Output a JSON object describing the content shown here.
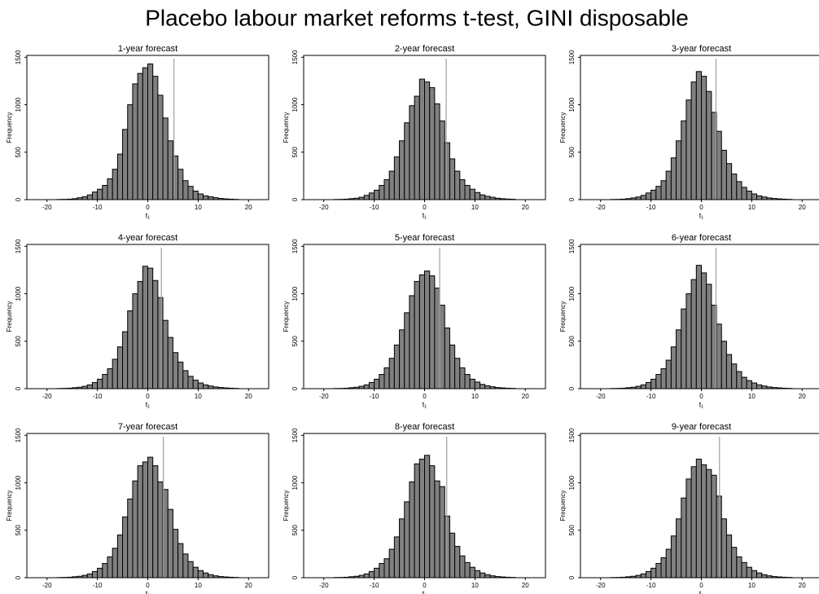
{
  "title": "Placebo labour market reforms t-test, GINI disposable",
  "chart_data": [
    {
      "type": "histogram",
      "title": "1-year forecast",
      "x_label": "t₁",
      "y_label": "Frequency",
      "color": "#808080",
      "vline": 5.2,
      "vline_color": "#a0a0a0",
      "bins": [
        -18,
        -17,
        -16,
        -15,
        -14,
        -13,
        -12,
        -11,
        -10,
        -9,
        -8,
        -7,
        -6,
        -5,
        -4,
        -3,
        -2,
        -1,
        0,
        1,
        2,
        3,
        4,
        5,
        6,
        7,
        8,
        9,
        10,
        11,
        12,
        13,
        14,
        15,
        16,
        17,
        18
      ],
      "values": [
        2,
        3,
        5,
        10,
        20,
        30,
        50,
        80,
        110,
        150,
        220,
        320,
        480,
        740,
        1000,
        1220,
        1330,
        1390,
        1430,
        1300,
        1100,
        860,
        620,
        460,
        320,
        200,
        140,
        90,
        60,
        40,
        30,
        20,
        12,
        8,
        5,
        3
      ],
      "xlim": [
        -24,
        24
      ],
      "xticks": [
        -20,
        -10,
        0,
        10,
        20
      ],
      "ylim": [
        0,
        1520
      ],
      "yticks": [
        0,
        500,
        1000,
        1500
      ]
    },
    {
      "type": "histogram",
      "title": "2-year forecast",
      "x_label": "t₁",
      "y_label": "Frequency",
      "color": "#808080",
      "vline": 4.3,
      "vline_color": "#a0a0a0",
      "bins": [
        -18,
        -17,
        -16,
        -15,
        -14,
        -13,
        -12,
        -11,
        -10,
        -9,
        -8,
        -7,
        -6,
        -5,
        -4,
        -3,
        -2,
        -1,
        0,
        1,
        2,
        3,
        4,
        5,
        6,
        7,
        8,
        9,
        10,
        11,
        12,
        13,
        14,
        15,
        16,
        17,
        18
      ],
      "values": [
        2,
        3,
        5,
        10,
        15,
        25,
        45,
        70,
        100,
        150,
        210,
        300,
        450,
        620,
        810,
        990,
        1090,
        1270,
        1240,
        1180,
        1010,
        830,
        600,
        430,
        300,
        210,
        150,
        110,
        75,
        50,
        35,
        25,
        15,
        10,
        6,
        4
      ],
      "xlim": [
        -24,
        24
      ],
      "xticks": [
        -20,
        -10,
        0,
        10,
        20
      ],
      "ylim": [
        0,
        1520
      ],
      "yticks": [
        0,
        500,
        1000,
        1500
      ]
    },
    {
      "type": "histogram",
      "title": "3-year forecast",
      "x_label": "t₁",
      "y_label": "Frequency",
      "color": "#808080",
      "vline": 2.9,
      "vline_color": "#a0a0a0",
      "bins": [
        -18,
        -17,
        -16,
        -15,
        -14,
        -13,
        -12,
        -11,
        -10,
        -9,
        -8,
        -7,
        -6,
        -5,
        -4,
        -3,
        -2,
        -1,
        0,
        1,
        2,
        3,
        4,
        5,
        6,
        7,
        8,
        9,
        10,
        11,
        12,
        13,
        14,
        15,
        16,
        17,
        18
      ],
      "values": [
        2,
        3,
        5,
        10,
        18,
        28,
        45,
        70,
        100,
        140,
        200,
        300,
        440,
        620,
        830,
        1050,
        1240,
        1350,
        1300,
        1140,
        920,
        720,
        520,
        380,
        270,
        190,
        130,
        90,
        60,
        40,
        28,
        18,
        12,
        8,
        5,
        3
      ],
      "xlim": [
        -24,
        24
      ],
      "xticks": [
        -20,
        -10,
        0,
        10,
        20
      ],
      "ylim": [
        0,
        1520
      ],
      "yticks": [
        0,
        500,
        1000,
        1500
      ]
    },
    {
      "type": "histogram",
      "title": "4-year forecast",
      "x_label": "t₁",
      "y_label": "Frequency",
      "color": "#808080",
      "vline": 2.7,
      "vline_color": "#a0a0a0",
      "bins": [
        -18,
        -17,
        -16,
        -15,
        -14,
        -13,
        -12,
        -11,
        -10,
        -9,
        -8,
        -7,
        -6,
        -5,
        -4,
        -3,
        -2,
        -1,
        0,
        1,
        2,
        3,
        4,
        5,
        6,
        7,
        8,
        9,
        10,
        11,
        12,
        13,
        14,
        15,
        16,
        17,
        18
      ],
      "values": [
        2,
        3,
        5,
        10,
        15,
        25,
        40,
        65,
        100,
        150,
        210,
        310,
        440,
        600,
        820,
        1000,
        1130,
        1290,
        1270,
        1140,
        960,
        720,
        540,
        380,
        280,
        190,
        130,
        90,
        60,
        40,
        28,
        18,
        12,
        8,
        5,
        3
      ],
      "xlim": [
        -24,
        24
      ],
      "xticks": [
        -20,
        -10,
        0,
        10,
        20
      ],
      "ylim": [
        0,
        1520
      ],
      "yticks": [
        0,
        500,
        1000,
        1500
      ]
    },
    {
      "type": "histogram",
      "title": "5-year forecast",
      "x_label": "t₁",
      "y_label": "Frequency",
      "color": "#808080",
      "vline": 3.0,
      "vline_color": "#a0a0a0",
      "bins": [
        -18,
        -17,
        -16,
        -15,
        -14,
        -13,
        -12,
        -11,
        -10,
        -9,
        -8,
        -7,
        -6,
        -5,
        -4,
        -3,
        -2,
        -1,
        0,
        1,
        2,
        3,
        4,
        5,
        6,
        7,
        8,
        9,
        10,
        11,
        12,
        13,
        14,
        15,
        16,
        17,
        18
      ],
      "values": [
        2,
        3,
        5,
        10,
        15,
        25,
        40,
        65,
        100,
        150,
        220,
        320,
        460,
        620,
        800,
        980,
        1130,
        1200,
        1240,
        1190,
        1060,
        880,
        640,
        460,
        320,
        220,
        150,
        100,
        70,
        45,
        30,
        20,
        12,
        8,
        5,
        3
      ],
      "xlim": [
        -24,
        24
      ],
      "xticks": [
        -20,
        -10,
        0,
        10,
        20
      ],
      "ylim": [
        0,
        1520
      ],
      "yticks": [
        0,
        500,
        1000,
        1500
      ]
    },
    {
      "type": "histogram",
      "title": "6-year forecast",
      "x_label": "t₁",
      "y_label": "Frequency",
      "color": "#808080",
      "vline": 2.9,
      "vline_color": "#a0a0a0",
      "bins": [
        -18,
        -17,
        -16,
        -15,
        -14,
        -13,
        -12,
        -11,
        -10,
        -9,
        -8,
        -7,
        -6,
        -5,
        -4,
        -3,
        -2,
        -1,
        0,
        1,
        2,
        3,
        4,
        5,
        6,
        7,
        8,
        9,
        10,
        11,
        12,
        13,
        14,
        15,
        16,
        17,
        18
      ],
      "values": [
        2,
        3,
        5,
        10,
        15,
        25,
        40,
        65,
        100,
        150,
        210,
        300,
        440,
        620,
        840,
        1000,
        1150,
        1300,
        1220,
        1100,
        880,
        680,
        500,
        360,
        260,
        180,
        120,
        85,
        60,
        40,
        28,
        18,
        12,
        8,
        5,
        3
      ],
      "xlim": [
        -24,
        24
      ],
      "xticks": [
        -20,
        -10,
        0,
        10,
        20
      ],
      "ylim": [
        0,
        1520
      ],
      "yticks": [
        0,
        500,
        1000,
        1500
      ]
    },
    {
      "type": "histogram",
      "title": "7-year forecast",
      "x_label": "t₁",
      "y_label": "Frequency",
      "color": "#808080",
      "vline": 3.1,
      "vline_color": "#a0a0a0",
      "bins": [
        -18,
        -17,
        -16,
        -15,
        -14,
        -13,
        -12,
        -11,
        -10,
        -9,
        -8,
        -7,
        -6,
        -5,
        -4,
        -3,
        -2,
        -1,
        0,
        1,
        2,
        3,
        4,
        5,
        6,
        7,
        8,
        9,
        10,
        11,
        12,
        13,
        14,
        15,
        16,
        17,
        18
      ],
      "values": [
        2,
        3,
        5,
        10,
        15,
        25,
        40,
        65,
        100,
        150,
        220,
        310,
        450,
        640,
        830,
        1020,
        1180,
        1220,
        1270,
        1180,
        1010,
        930,
        720,
        510,
        360,
        250,
        170,
        110,
        75,
        50,
        32,
        20,
        12,
        8,
        5,
        3
      ],
      "xlim": [
        -24,
        24
      ],
      "xticks": [
        -20,
        -10,
        0,
        10,
        20
      ],
      "ylim": [
        0,
        1520
      ],
      "yticks": [
        0,
        500,
        1000,
        1500
      ]
    },
    {
      "type": "histogram",
      "title": "8-year forecast",
      "x_label": "t₁",
      "y_label": "Frequency",
      "color": "#808080",
      "vline": 4.4,
      "vline_color": "#a0a0a0",
      "bins": [
        -18,
        -17,
        -16,
        -15,
        -14,
        -13,
        -12,
        -11,
        -10,
        -9,
        -8,
        -7,
        -6,
        -5,
        -4,
        -3,
        -2,
        -1,
        0,
        1,
        2,
        3,
        4,
        5,
        6,
        7,
        8,
        9,
        10,
        11,
        12,
        13,
        14,
        15,
        16,
        17,
        18
      ],
      "values": [
        2,
        3,
        5,
        10,
        15,
        25,
        40,
        65,
        100,
        150,
        200,
        300,
        430,
        620,
        800,
        1010,
        1200,
        1250,
        1290,
        1180,
        1020,
        960,
        650,
        470,
        330,
        230,
        160,
        110,
        75,
        50,
        32,
        20,
        12,
        8,
        5,
        3
      ],
      "xlim": [
        -24,
        24
      ],
      "xticks": [
        -20,
        -10,
        0,
        10,
        20
      ],
      "ylim": [
        0,
        1520
      ],
      "yticks": [
        0,
        500,
        1000,
        1500
      ]
    },
    {
      "type": "histogram",
      "title": "9-year forecast",
      "x_label": "t₁",
      "y_label": "Frequency",
      "color": "#808080",
      "vline": 3.6,
      "vline_color": "#a0a0a0",
      "bins": [
        -18,
        -17,
        -16,
        -15,
        -14,
        -13,
        -12,
        -11,
        -10,
        -9,
        -8,
        -7,
        -6,
        -5,
        -4,
        -3,
        -2,
        -1,
        0,
        1,
        2,
        3,
        4,
        5,
        6,
        7,
        8,
        9,
        10,
        11,
        12,
        13,
        14,
        15,
        16,
        17,
        18
      ],
      "values": [
        2,
        3,
        5,
        10,
        15,
        25,
        40,
        65,
        100,
        150,
        210,
        300,
        440,
        620,
        840,
        1040,
        1170,
        1250,
        1190,
        1140,
        1080,
        860,
        620,
        450,
        320,
        220,
        160,
        110,
        75,
        50,
        32,
        20,
        12,
        8,
        5,
        3
      ],
      "xlim": [
        -24,
        24
      ],
      "xticks": [
        -20,
        -10,
        0,
        10,
        20
      ],
      "ylim": [
        0,
        1520
      ],
      "yticks": [
        0,
        500,
        1000,
        1500
      ]
    }
  ]
}
